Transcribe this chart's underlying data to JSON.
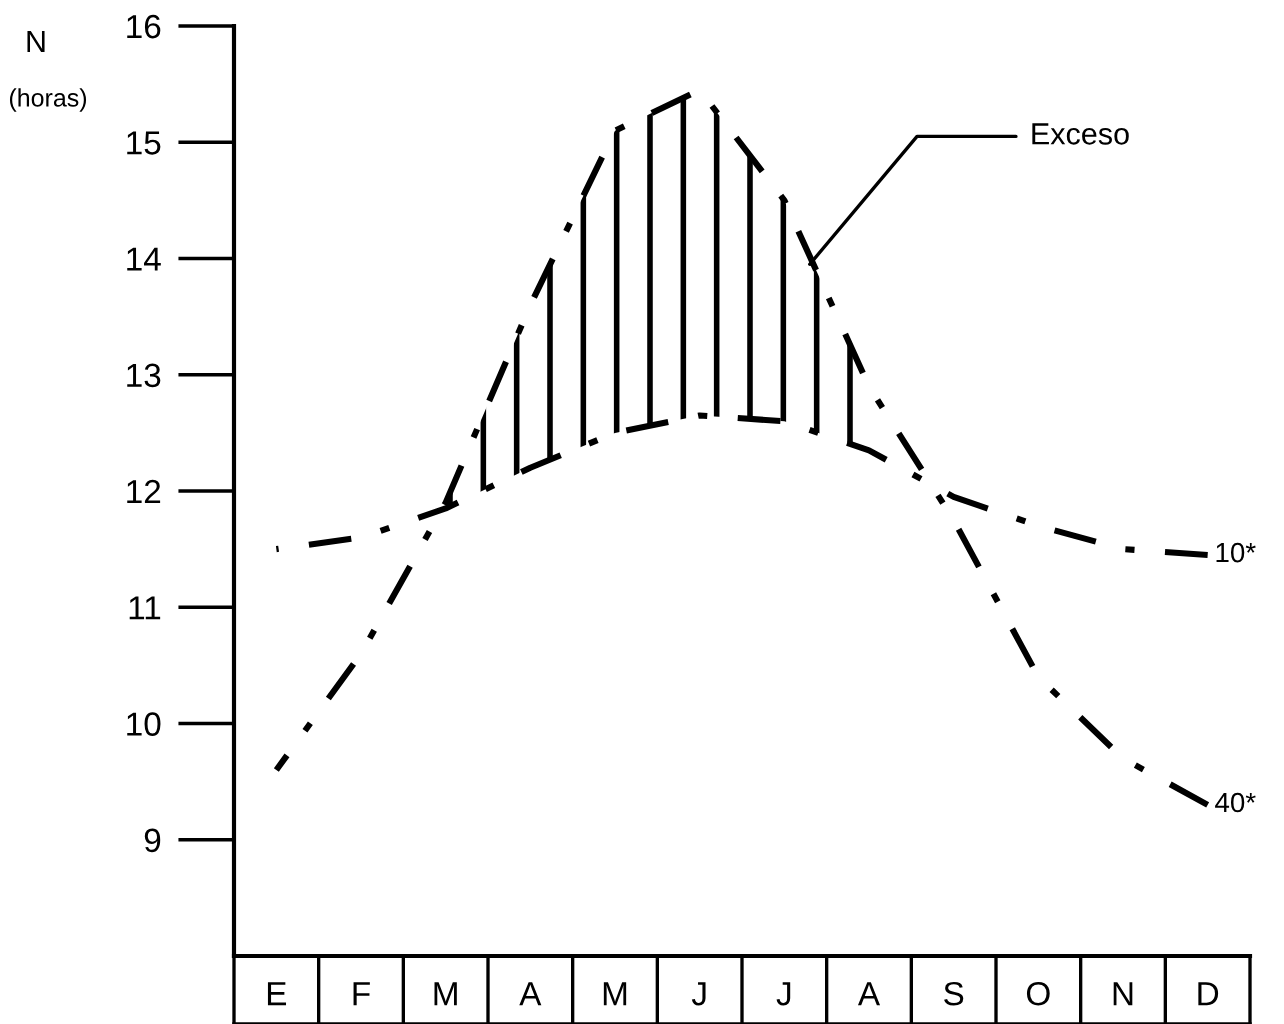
{
  "chart_data": {
    "type": "line",
    "ylabel": "N",
    "annotations": [
      "(horas)"
    ],
    "categories": [
      "E",
      "F",
      "M",
      "A",
      "M",
      "J",
      "J",
      "A",
      "S",
      "O",
      "N",
      "D"
    ],
    "series": [
      {
        "name": "10*",
        "color": "#000000",
        "values": [
          11.5,
          11.6,
          11.85,
          12.2,
          12.5,
          12.65,
          12.6,
          12.35,
          11.95,
          11.7,
          11.5,
          11.45
        ]
      },
      {
        "name": "40*",
        "color": "#000000",
        "values": [
          9.6,
          10.6,
          11.9,
          13.6,
          15.1,
          15.45,
          14.5,
          12.9,
          11.75,
          10.4,
          9.7,
          9.3
        ]
      },
      {
        "name": "Exceso",
        "type": "area",
        "color": "#000000",
        "values": [
          null,
          null,
          11.9,
          13.6,
          15.1,
          15.45,
          14.5,
          12.9,
          null,
          null,
          null,
          null
        ]
      }
    ],
    "ylim": [
      8,
      16
    ],
    "yticks": [
      9,
      10,
      11,
      12,
      13,
      14,
      15,
      16
    ],
    "grid": false,
    "marker": "none",
    "line_style": "dashed"
  }
}
